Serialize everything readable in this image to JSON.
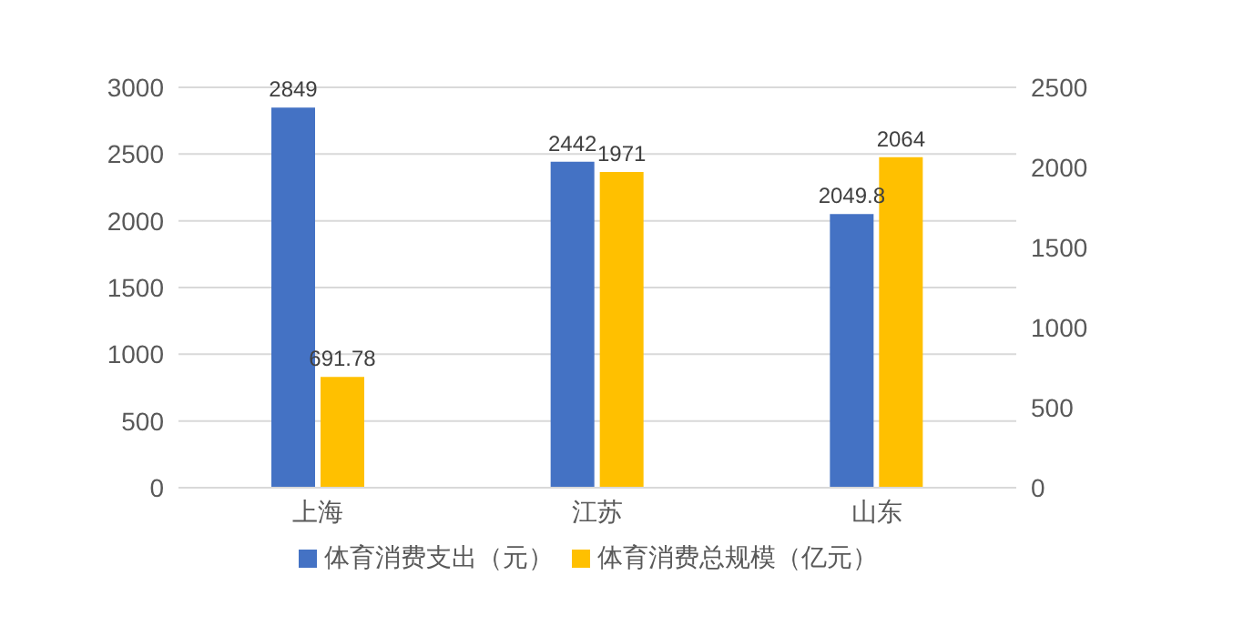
{
  "chart_data": {
    "type": "bar",
    "categories": [
      "上海",
      "江苏",
      "山东"
    ],
    "series": [
      {
        "name": "体育消费支出（元）",
        "color": "#4472c4",
        "values": [
          2849,
          2442,
          2049.8
        ]
      },
      {
        "name": "体育消费总规模（亿元）",
        "color": "#ffc000",
        "values": [
          691.78,
          1971,
          2064
        ],
        "axis": "y2"
      }
    ],
    "ylim": [
      0,
      3000
    ],
    "yticks": [
      0,
      500,
      1000,
      1500,
      2000,
      2500,
      3000
    ],
    "y2lim": [
      0,
      2500
    ],
    "y2ticks": [
      0,
      500,
      1000,
      1500,
      2000,
      2500
    ],
    "grid": "y",
    "legend": "bottom",
    "data_labels": true
  }
}
